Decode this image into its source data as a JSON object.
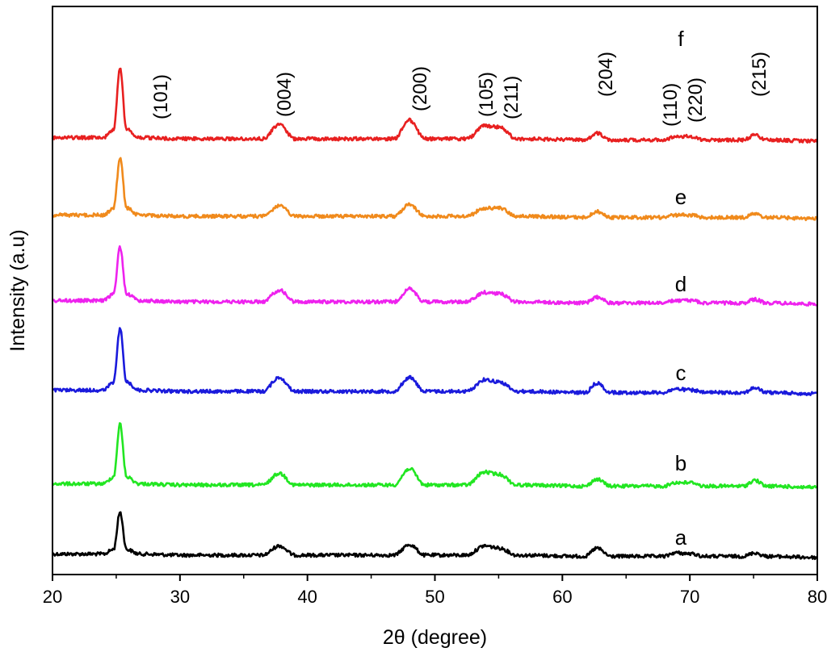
{
  "chart_data": {
    "type": "line",
    "xlabel": "2θ (degree)",
    "ylabel": "Intensity (a.u)",
    "xlim": [
      20,
      80
    ],
    "xticks": [
      20,
      30,
      40,
      50,
      60,
      70,
      80
    ],
    "y_ticks_shown": false,
    "grid": false,
    "peaks": [
      {
        "label": "(101)",
        "x": 25.3
      },
      {
        "label": "(004)",
        "x": 37.8
      },
      {
        "label": "(200)",
        "x": 48.0
      },
      {
        "label": "(105)",
        "x": 53.9
      },
      {
        "label": "(211)",
        "x": 55.1
      },
      {
        "label": "(204)",
        "x": 62.7
      },
      {
        "label": "(110)",
        "x": 68.8
      },
      {
        "label": "(220)",
        "x": 70.3
      },
      {
        "label": "(215)",
        "x": 75.1
      }
    ],
    "series": [
      {
        "name": "a",
        "color": "#000000",
        "offset": 0,
        "x": [
          20,
          24,
          24.8,
          25.3,
          25.8,
          26.8,
          30,
          36.5,
          37.8,
          39,
          46.8,
          48.0,
          49.2,
          52.5,
          53.9,
          55.1,
          56.4,
          61.8,
          62.7,
          63.8,
          68,
          68.8,
          70.3,
          71,
          74.2,
          75.1,
          76,
          80
        ],
        "y": [
          9,
          9,
          13,
          45,
          13,
          9,
          8,
          8,
          16,
          8,
          8,
          17,
          8,
          8,
          16,
          14,
          8,
          7,
          14,
          7,
          7,
          10,
          9,
          7,
          7,
          10,
          7,
          6
        ]
      },
      {
        "name": "b",
        "color": "#22e622",
        "offset": 1,
        "x": [
          20,
          24,
          24.8,
          25.3,
          25.8,
          26.8,
          30,
          36.5,
          37.8,
          39,
          46.8,
          48.0,
          49.2,
          52.5,
          53.9,
          55.1,
          56.4,
          61.8,
          62.7,
          63.8,
          68,
          68.8,
          70.3,
          71,
          74.2,
          75.1,
          76,
          80
        ],
        "y": [
          9,
          9,
          15,
          60,
          15,
          9,
          8,
          8,
          18,
          8,
          8,
          22,
          8,
          8,
          19,
          17,
          8,
          7,
          13,
          7,
          7,
          10,
          10,
          7,
          7,
          12,
          7,
          6
        ]
      },
      {
        "name": "c",
        "color": "#1a1adc",
        "offset": 2,
        "x": [
          20,
          24,
          24.8,
          25.3,
          25.8,
          26.8,
          30,
          36.5,
          37.8,
          39,
          46.8,
          48.0,
          49.2,
          52.5,
          53.9,
          55.1,
          56.4,
          61.8,
          62.7,
          63.8,
          68,
          68.8,
          70.3,
          71,
          74.2,
          75.1,
          76,
          80
        ],
        "y": [
          9,
          9,
          16,
          62,
          16,
          9,
          8,
          8,
          20,
          8,
          8,
          20,
          8,
          8,
          18,
          16,
          8,
          7,
          15,
          7,
          7,
          10,
          9,
          7,
          7,
          11,
          7,
          6
        ]
      },
      {
        "name": "d",
        "color": "#ee22ee",
        "offset": 3,
        "x": [
          20,
          24,
          24.8,
          25.3,
          25.8,
          26.8,
          30,
          36.5,
          37.8,
          39,
          46.8,
          48.0,
          49.2,
          52.5,
          53.9,
          55.1,
          56.4,
          61.8,
          62.7,
          63.8,
          68,
          68.8,
          70.3,
          71,
          74.2,
          75.1,
          76,
          80
        ],
        "y": [
          9,
          9,
          15,
          55,
          15,
          9,
          8,
          8,
          18,
          8,
          8,
          19,
          8,
          8,
          16,
          15,
          8,
          7,
          12,
          7,
          7,
          9,
          9,
          7,
          7,
          10,
          7,
          6
        ]
      },
      {
        "name": "e",
        "color": "#f08a1c",
        "offset": 4,
        "x": [
          20,
          24,
          24.8,
          25.3,
          25.8,
          26.8,
          30,
          36.5,
          37.8,
          39,
          46.8,
          48.0,
          49.2,
          52.5,
          53.9,
          55.1,
          56.4,
          61.8,
          62.7,
          63.8,
          68,
          68.8,
          70.3,
          71,
          74.2,
          75.1,
          76,
          80
        ],
        "y": [
          9,
          9,
          15,
          58,
          15,
          9,
          8,
          8,
          17,
          8,
          8,
          18,
          8,
          8,
          15,
          15,
          8,
          7,
          12,
          7,
          7,
          9,
          9,
          7,
          7,
          10,
          7,
          6
        ]
      },
      {
        "name": "f",
        "color": "#e82020",
        "offset": 5,
        "x": [
          20,
          24,
          24.8,
          25.3,
          25.8,
          26.8,
          30,
          36.5,
          37.8,
          39,
          46.8,
          48.0,
          49.2,
          52.5,
          53.9,
          55.1,
          56.4,
          61.8,
          62.7,
          63.8,
          68,
          68.8,
          70.3,
          71,
          74.2,
          75.1,
          76,
          80
        ],
        "y": [
          9,
          9,
          16,
          68,
          16,
          9,
          8,
          8,
          20,
          8,
          8,
          24,
          8,
          8,
          19,
          18,
          8,
          7,
          13,
          7,
          7,
          10,
          10,
          7,
          7,
          11,
          7,
          6
        ]
      }
    ]
  }
}
